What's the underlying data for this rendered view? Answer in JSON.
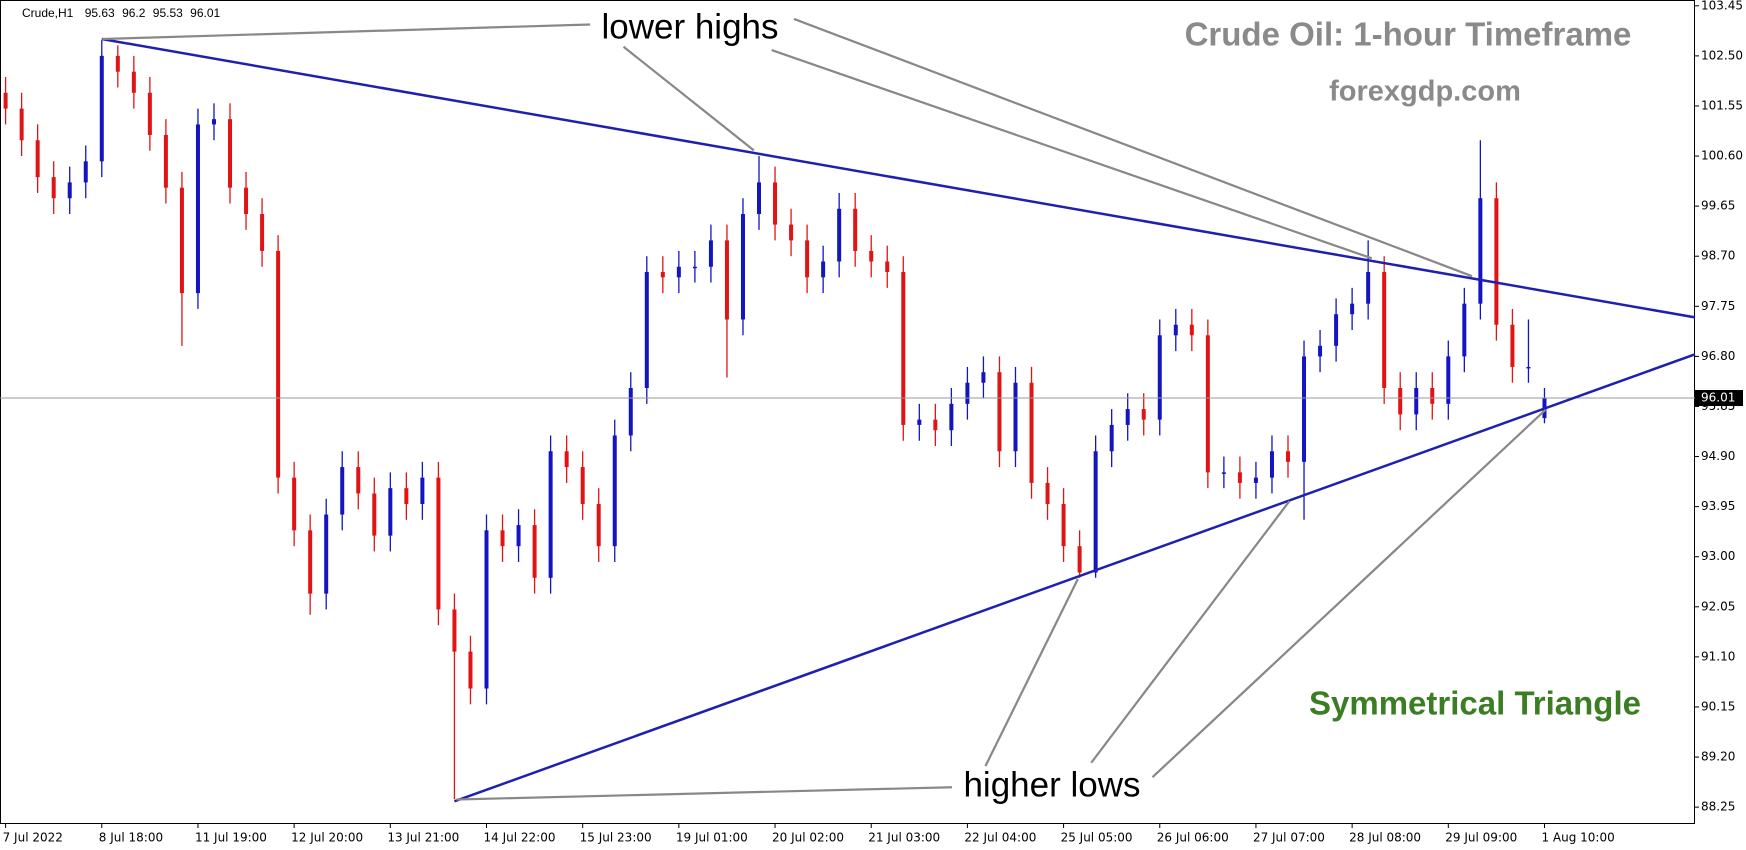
{
  "chart_data": {
    "type": "candlestick",
    "symbol": "Crude,H1",
    "title": "Crude Oil: 1-hour Timeframe",
    "subtitle": "forexgdp.com",
    "annotations": [
      "lower highs",
      "higher lows",
      "Symmetrical Triangle"
    ],
    "categories": [
      "7 Jul 2022",
      null,
      null,
      null,
      null,
      null,
      "8 Jul 18:00",
      null,
      null,
      null,
      null,
      null,
      "11 Jul 19:00",
      null,
      null,
      null,
      null,
      null,
      "12 Jul 20:00",
      null,
      null,
      null,
      null,
      null,
      "13 Jul 21:00",
      null,
      null,
      null,
      null,
      null,
      "14 Jul 22:00",
      null,
      null,
      null,
      null,
      null,
      "15 Jul 23:00",
      null,
      null,
      null,
      null,
      null,
      "19 Jul 01:00",
      null,
      null,
      null,
      null,
      null,
      "20 Jul 02:00",
      null,
      null,
      null,
      null,
      null,
      "21 Jul 03:00",
      null,
      null,
      null,
      null,
      null,
      "22 Jul 04:00",
      null,
      null,
      null,
      null,
      null,
      "25 Jul 05:00",
      null,
      null,
      null,
      null,
      null,
      "26 Jul 06:00",
      null,
      null,
      null,
      null,
      null,
      "27 Jul 07:00",
      null,
      null,
      null,
      null,
      null,
      "28 Jul 08:00",
      null,
      null,
      null,
      null,
      null,
      "29 Jul 09:00",
      null,
      null,
      null,
      null,
      null,
      "1 Aug 10:00"
    ],
    "open": [
      101.8,
      101.5,
      100.9,
      100.2,
      99.8,
      100.1,
      100.5,
      102.5,
      102.2,
      101.8,
      101.0,
      100.0,
      98.0,
      101.2,
      101.3,
      100.0,
      99.5,
      98.8,
      94.5,
      93.5,
      92.3,
      93.8,
      94.7,
      94.2,
      93.4,
      94.3,
      94.0,
      94.5,
      92.0,
      91.2,
      90.5,
      93.5,
      93.2,
      93.6,
      92.6,
      95.0,
      94.7,
      94.0,
      93.2,
      95.3,
      96.2,
      98.4,
      98.3,
      98.5,
      98.5,
      99.0,
      97.5,
      99.5,
      100.1,
      99.3,
      99.0,
      98.3,
      98.6,
      99.6,
      98.8,
      98.6,
      98.4,
      95.5,
      95.6,
      95.4,
      95.9,
      96.3,
      96.5,
      95.0,
      96.3,
      94.4,
      94.0,
      93.2,
      92.7,
      95.0,
      95.5,
      95.8,
      95.6,
      97.2,
      97.4,
      97.2,
      94.6,
      94.6,
      94.4,
      94.5,
      95.0,
      94.8,
      96.8,
      97.0,
      97.6,
      97.8,
      98.4,
      96.2,
      95.7,
      96.2,
      95.9,
      96.8,
      97.8,
      99.8,
      97.4,
      96.6,
      95.63
    ],
    "high": [
      102.1,
      101.8,
      101.2,
      100.5,
      100.4,
      100.8,
      102.8,
      102.7,
      102.5,
      102.1,
      101.3,
      100.3,
      101.5,
      101.6,
      101.6,
      100.3,
      99.8,
      99.1,
      94.8,
      93.8,
      94.1,
      95.0,
      95.0,
      94.5,
      94.6,
      94.6,
      94.8,
      94.8,
      92.3,
      91.5,
      93.8,
      93.8,
      93.9,
      93.9,
      95.3,
      95.3,
      95.0,
      94.3,
      95.6,
      96.5,
      98.7,
      98.7,
      98.8,
      98.8,
      99.3,
      99.3,
      99.8,
      100.6,
      100.4,
      99.6,
      99.3,
      98.9,
      99.9,
      99.9,
      99.1,
      98.9,
      98.7,
      95.9,
      95.9,
      96.2,
      96.6,
      96.8,
      96.8,
      96.6,
      96.6,
      94.7,
      94.3,
      93.5,
      95.3,
      95.8,
      96.1,
      96.1,
      97.5,
      97.7,
      97.7,
      97.5,
      94.9,
      94.9,
      94.8,
      95.3,
      95.3,
      97.1,
      97.3,
      97.9,
      98.1,
      99.0,
      98.7,
      96.5,
      96.5,
      96.5,
      97.1,
      98.1,
      100.9,
      100.1,
      97.7,
      97.5,
      96.2
    ],
    "low": [
      101.2,
      100.6,
      99.9,
      99.5,
      99.5,
      99.8,
      100.2,
      101.9,
      101.5,
      100.7,
      99.7,
      97.0,
      97.7,
      100.9,
      99.7,
      99.2,
      98.5,
      94.2,
      93.2,
      91.9,
      92.0,
      93.5,
      93.9,
      93.1,
      93.1,
      93.7,
      93.7,
      91.7,
      88.4,
      90.2,
      90.2,
      92.9,
      92.9,
      92.3,
      92.3,
      94.4,
      93.7,
      92.9,
      92.9,
      95.0,
      95.9,
      98.0,
      98.0,
      98.2,
      98.2,
      96.4,
      97.2,
      99.2,
      99.0,
      98.7,
      98.0,
      98.0,
      98.3,
      98.5,
      98.3,
      98.1,
      95.2,
      95.2,
      95.1,
      95.1,
      95.6,
      96.0,
      94.7,
      94.7,
      94.1,
      93.7,
      92.9,
      92.6,
      92.6,
      94.7,
      95.2,
      95.3,
      95.3,
      96.9,
      96.9,
      94.3,
      94.3,
      94.1,
      94.1,
      94.2,
      94.5,
      93.7,
      96.5,
      96.7,
      97.3,
      97.5,
      95.9,
      95.4,
      95.4,
      95.6,
      95.6,
      96.5,
      97.5,
      97.1,
      96.3,
      96.3,
      95.53
    ],
    "close": [
      101.5,
      100.9,
      100.2,
      99.8,
      100.1,
      100.5,
      102.5,
      102.2,
      101.8,
      101.0,
      100.0,
      98.0,
      101.2,
      101.3,
      100.0,
      99.5,
      98.8,
      94.5,
      93.5,
      92.3,
      93.8,
      94.7,
      94.2,
      93.4,
      94.3,
      94.0,
      94.5,
      92.0,
      91.2,
      90.5,
      93.5,
      93.2,
      93.6,
      92.6,
      95.0,
      94.7,
      94.0,
      93.2,
      95.3,
      96.2,
      98.4,
      98.3,
      98.5,
      98.5,
      99.0,
      97.5,
      99.5,
      100.1,
      99.3,
      99.0,
      98.3,
      98.6,
      99.6,
      98.8,
      98.6,
      98.4,
      95.5,
      95.6,
      95.4,
      95.9,
      96.3,
      96.5,
      95.0,
      96.3,
      94.4,
      94.0,
      93.2,
      92.7,
      95.0,
      95.5,
      95.8,
      95.6,
      97.2,
      97.4,
      97.2,
      94.6,
      94.6,
      94.4,
      94.5,
      95.0,
      94.8,
      96.8,
      97.0,
      97.6,
      97.8,
      98.4,
      96.2,
      95.7,
      96.2,
      95.9,
      96.8,
      97.8,
      99.8,
      97.4,
      96.6,
      96.6,
      96.01
    ],
    "up_color": "#1414c0",
    "down_color": "#e01414",
    "trendlines": [
      {
        "color": "#1f1fb0",
        "values": [
          102.82,
          97.54
        ]
      },
      {
        "color": "#1f1fb0",
        "values": [
          88.36,
          96.84
        ]
      }
    ],
    "ylim": [
      87.93,
      103.56
    ],
    "yticks": [
      103.45,
      {
        "value": 102.5,
        "label": "102.50"
      },
      101.55,
      {
        "value": 100.6,
        "label": "100.60"
      },
      99.65,
      {
        "value": 98.7,
        "label": "98.70"
      },
      97.75,
      {
        "value": 96.8,
        "label": "96.80"
      },
      95.85,
      {
        "value": 94.9,
        "label": "94.90"
      },
      93.95,
      {
        "value": 93.0,
        "label": "93.00"
      },
      92.05,
      {
        "value": 91.1,
        "label": "91.10"
      },
      90.15,
      {
        "value": 89.2,
        "label": "89.20"
      },
      88.25
    ],
    "grid": false
  }
}
